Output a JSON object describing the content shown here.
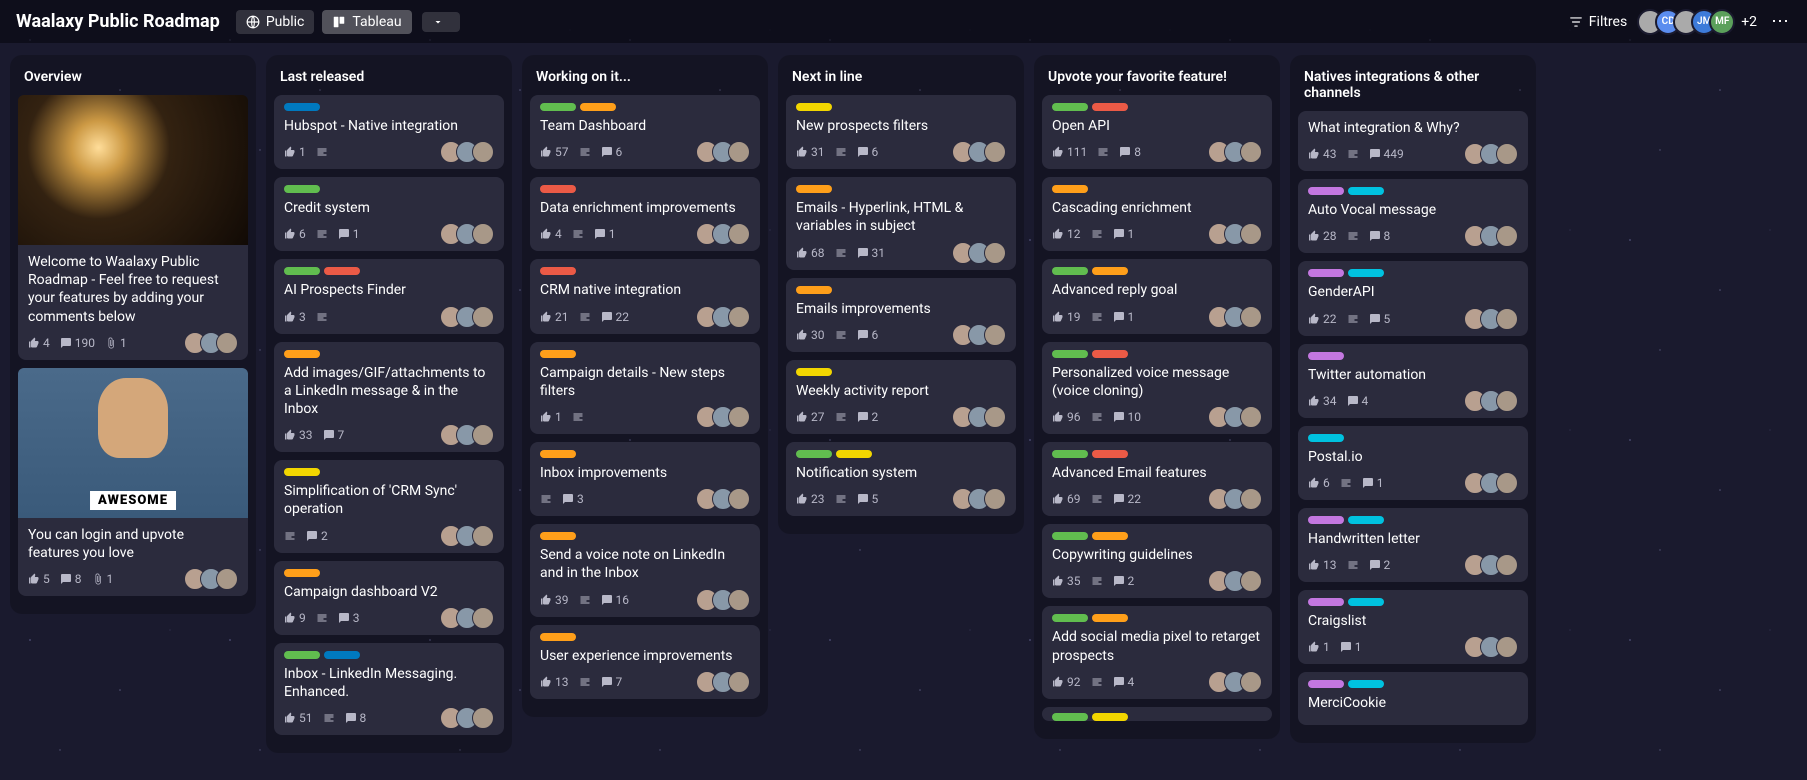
{
  "header": {
    "title": "Waalaxy Public Roadmap",
    "public_label": "Public",
    "view_label": "Tableau",
    "filter_label": "Filtres",
    "avatars": [
      "",
      "CD",
      "",
      "JM",
      "MF"
    ],
    "plus_count": "+2"
  },
  "columns": [
    {
      "title": "Overview",
      "cards": [
        {
          "cover": "lamp",
          "labels": [],
          "title": "Welcome to Waalaxy Public Roadmap - Feel free to request your features by adding your comments below",
          "votes": 4,
          "comments": 190,
          "attachments": 1,
          "avatars": 3
        },
        {
          "cover": "gif",
          "labels": [],
          "title": "You can login and upvote features you love",
          "votes": 5,
          "comments": 8,
          "attachments": 1,
          "avatars": 3
        }
      ]
    },
    {
      "title": "Last released",
      "cards": [
        {
          "labels": [
            "blue"
          ],
          "title": "Hubspot - Native integration",
          "votes": 1,
          "has_desc": true,
          "avatars": 3
        },
        {
          "labels": [
            "green"
          ],
          "title": "Credit system",
          "votes": 6,
          "has_desc": true,
          "comments": 1,
          "avatars": 3
        },
        {
          "labels": [
            "green",
            "red"
          ],
          "title": "AI Prospects Finder",
          "votes": 3,
          "has_desc": true,
          "avatars": 3
        },
        {
          "labels": [
            "orange"
          ],
          "title": "Add images/GIF/attachments to a LinkedIn message & in the Inbox",
          "votes": 33,
          "comments": 7,
          "avatars": 3
        },
        {
          "labels": [
            "yellow"
          ],
          "title": "Simplification of 'CRM Sync' operation",
          "has_desc": true,
          "comments": 2,
          "avatars": 3
        },
        {
          "labels": [
            "orange"
          ],
          "title": "Campaign dashboard V2",
          "votes": 9,
          "has_desc": true,
          "comments": 3,
          "avatars": 3
        },
        {
          "labels": [
            "green",
            "blue"
          ],
          "title": "Inbox - LinkedIn Messaging. Enhanced.",
          "votes": 51,
          "has_desc": true,
          "comments": 8,
          "avatars": 3
        }
      ]
    },
    {
      "title": "Working on it...",
      "cards": [
        {
          "labels": [
            "green",
            "orange"
          ],
          "title": "Team Dashboard",
          "votes": 57,
          "has_desc": true,
          "comments": 6,
          "avatars": 3
        },
        {
          "labels": [
            "red"
          ],
          "title": "Data enrichment improvements",
          "votes": 4,
          "has_desc": true,
          "comments": 1,
          "avatars": 3
        },
        {
          "labels": [
            "red"
          ],
          "title": "CRM native integration",
          "votes": 21,
          "has_desc": true,
          "comments": 22,
          "avatars": 3
        },
        {
          "labels": [
            "orange"
          ],
          "title": "Campaign details - New steps filters",
          "votes": 1,
          "has_desc": true,
          "avatars": 3
        },
        {
          "labels": [
            "orange"
          ],
          "title": "Inbox improvements",
          "has_desc": true,
          "comments": 3,
          "avatars": 3
        },
        {
          "labels": [
            "orange"
          ],
          "title": "Send a voice note on LinkedIn and in the Inbox",
          "votes": 39,
          "has_desc": true,
          "comments": 16,
          "avatars": 3
        },
        {
          "labels": [
            "orange"
          ],
          "title": "User experience improvements",
          "votes": 13,
          "has_desc": true,
          "comments": 7,
          "avatars": 3
        }
      ]
    },
    {
      "title": "Next in line",
      "cards": [
        {
          "labels": [
            "yellow"
          ],
          "title": "New prospects filters",
          "votes": 31,
          "has_desc": true,
          "comments": 6,
          "avatars": 3
        },
        {
          "labels": [
            "orange"
          ],
          "title": "Emails - Hyperlink, HTML & variables in subject",
          "votes": 68,
          "has_desc": true,
          "comments": 31,
          "avatars": 3
        },
        {
          "labels": [
            "orange"
          ],
          "title": "Emails improvements",
          "votes": 30,
          "has_desc": true,
          "comments": 6,
          "avatars": 3
        },
        {
          "labels": [
            "yellow"
          ],
          "title": "Weekly activity report",
          "votes": 27,
          "has_desc": true,
          "comments": 2,
          "avatars": 3
        },
        {
          "labels": [
            "green",
            "yellow"
          ],
          "title": "Notification system",
          "votes": 23,
          "has_desc": true,
          "comments": 5,
          "avatars": 3
        }
      ]
    },
    {
      "title": "Upvote your favorite feature!",
      "cards": [
        {
          "labels": [
            "green",
            "red"
          ],
          "title": "Open API",
          "votes": 111,
          "has_desc": true,
          "comments": 8,
          "avatars": 3
        },
        {
          "labels": [
            "orange"
          ],
          "title": "Cascading enrichment",
          "votes": 12,
          "has_desc": true,
          "comments": 1,
          "avatars": 3
        },
        {
          "labels": [
            "green",
            "orange"
          ],
          "title": "Advanced reply goal",
          "votes": 19,
          "has_desc": true,
          "comments": 1,
          "avatars": 3
        },
        {
          "labels": [
            "green",
            "red"
          ],
          "title": "Personalized voice message (voice cloning)",
          "votes": 96,
          "has_desc": true,
          "comments": 10,
          "avatars": 3
        },
        {
          "labels": [
            "green",
            "red"
          ],
          "title": "Advanced Email features",
          "votes": 69,
          "has_desc": true,
          "comments": 22,
          "avatars": 3
        },
        {
          "labels": [
            "green",
            "orange"
          ],
          "title": "Copywriting guidelines",
          "votes": 35,
          "has_desc": true,
          "comments": 2,
          "avatars": 3
        },
        {
          "labels": [
            "green",
            "orange"
          ],
          "title": "Add social media pixel to retarget prospects",
          "votes": 92,
          "has_desc": true,
          "comments": 4,
          "avatars": 3
        },
        {
          "labels": [
            "green",
            "yellow"
          ],
          "title": "",
          "truncated": true
        }
      ]
    },
    {
      "title": "Natives integrations & other channels",
      "cards": [
        {
          "labels": [],
          "title": "What integration & Why?",
          "votes": 43,
          "has_desc": true,
          "comments": 449,
          "avatars": 3
        },
        {
          "labels": [
            "purple",
            "sky"
          ],
          "title": "Auto Vocal message",
          "votes": 28,
          "has_desc": true,
          "comments": 8,
          "avatars": 3
        },
        {
          "labels": [
            "purple",
            "sky"
          ],
          "title": "GenderAPI",
          "votes": 22,
          "has_desc": true,
          "comments": 5,
          "avatars": 3
        },
        {
          "labels": [
            "purple"
          ],
          "title": "Twitter automation",
          "votes": 34,
          "comments": 4,
          "avatars": 3
        },
        {
          "labels": [
            "sky"
          ],
          "title": "Postal.io",
          "votes": 6,
          "has_desc": true,
          "comments": 1,
          "avatars": 3
        },
        {
          "labels": [
            "purple",
            "sky"
          ],
          "title": "Handwritten letter",
          "votes": 13,
          "has_desc": true,
          "comments": 2,
          "avatars": 3
        },
        {
          "labels": [
            "purple",
            "sky"
          ],
          "title": "Craigslist",
          "votes": 1,
          "comments": 1,
          "avatars": 3
        },
        {
          "labels": [
            "purple",
            "sky"
          ],
          "title": "MerciCookie",
          "avatars": 3,
          "truncated_footer": true
        }
      ]
    }
  ]
}
